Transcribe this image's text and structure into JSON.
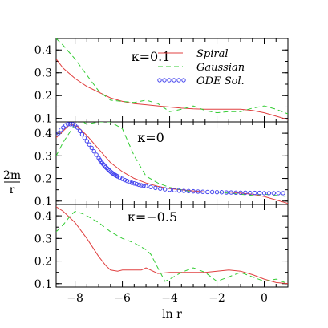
{
  "chart_data": [
    {
      "type": "line",
      "panel_label": "κ=0.1",
      "xlim": [
        -8.8,
        1.0
      ],
      "ylim": [
        0.085,
        0.45
      ],
      "yticks": [
        0.1,
        0.2,
        0.3,
        0.4
      ],
      "series": [
        {
          "name": "Spiral",
          "style": "solid",
          "color": "#e04040",
          "x": [
            -8.8,
            -8.5,
            -8.0,
            -7.5,
            -7.0,
            -6.5,
            -6.0,
            -5.5,
            -5.0,
            -4.5,
            -4.0,
            -3.5,
            -3.0,
            -2.5,
            -2.0,
            -1.5,
            -1.0,
            -0.5,
            0.0,
            0.5,
            1.0
          ],
          "y": [
            0.36,
            0.32,
            0.275,
            0.24,
            0.215,
            0.19,
            0.175,
            0.165,
            0.16,
            0.155,
            0.15,
            0.145,
            0.142,
            0.14,
            0.14,
            0.14,
            0.14,
            0.135,
            0.125,
            0.11,
            0.095
          ]
        },
        {
          "name": "Gaussian",
          "style": "dashed",
          "color": "#33cc33",
          "x": [
            -8.8,
            -8.5,
            -8.0,
            -7.5,
            -7.0,
            -6.5,
            -6.0,
            -5.5,
            -5.0,
            -4.5,
            -4.0,
            -3.5,
            -3.0,
            -2.5,
            -2.0,
            -1.5,
            -1.0,
            -0.5,
            0.0,
            0.5,
            1.0
          ],
          "y": [
            0.45,
            0.42,
            0.36,
            0.29,
            0.22,
            0.18,
            0.175,
            0.17,
            0.18,
            0.165,
            0.13,
            0.14,
            0.155,
            0.135,
            0.125,
            0.13,
            0.13,
            0.145,
            0.155,
            0.14,
            0.12
          ]
        }
      ]
    },
    {
      "type": "line",
      "panel_label": "κ=0",
      "xlim": [
        -8.8,
        1.0
      ],
      "ylim": [
        0.085,
        0.45
      ],
      "yticks": [
        0.1,
        0.2,
        0.3,
        0.4
      ],
      "series": [
        {
          "name": "Spiral",
          "style": "solid",
          "color": "#e04040",
          "x": [
            -8.8,
            -8.5,
            -8.2,
            -7.9,
            -7.5,
            -7.0,
            -6.5,
            -6.0,
            -5.5,
            -5.0,
            -4.5,
            -4.0,
            -3.5,
            -3.0,
            -2.5,
            -2.0,
            -1.5,
            -1.0,
            -0.5,
            0.0,
            0.5,
            1.0
          ],
          "y": [
            0.38,
            0.41,
            0.44,
            0.43,
            0.39,
            0.33,
            0.27,
            0.23,
            0.2,
            0.18,
            0.165,
            0.155,
            0.15,
            0.145,
            0.14,
            0.14,
            0.14,
            0.135,
            0.13,
            0.12,
            0.105,
            0.09
          ]
        },
        {
          "name": "Gaussian",
          "style": "dashed",
          "color": "#33cc33",
          "x": [
            -8.8,
            -8.5,
            -8.0,
            -7.8,
            -7.5,
            -7.0,
            -6.5,
            -6.0,
            -5.5,
            -5.0,
            -4.5,
            -4.0,
            -3.5,
            -3.0,
            -2.5,
            -2.0,
            -1.5,
            -1.0,
            -0.5,
            0.0,
            0.5,
            1.0
          ],
          "y": [
            0.3,
            0.36,
            0.44,
            0.46,
            0.44,
            0.45,
            0.45,
            0.42,
            0.3,
            0.21,
            0.18,
            0.16,
            0.15,
            0.14,
            0.14,
            0.14,
            0.135,
            0.13,
            0.125,
            0.13,
            0.125,
            0.12
          ]
        },
        {
          "name": "ODE Sol.",
          "style": "circles",
          "color": "#4444ee",
          "x": [
            -8.7,
            -8.6,
            -8.5,
            -8.4,
            -8.3,
            -8.2,
            -8.1,
            -8.0,
            -7.9,
            -7.8,
            -7.7,
            -7.6,
            -7.5,
            -7.4,
            -7.3,
            -7.2,
            -7.1,
            -7.0,
            -6.95,
            -6.9,
            -6.85,
            -6.8,
            -6.75,
            -6.7,
            -6.65,
            -6.6,
            -6.55,
            -6.5,
            -6.45,
            -6.4,
            -6.35,
            -6.3,
            -6.25,
            -6.2,
            -6.1,
            -6.0,
            -5.9,
            -5.8,
            -5.7,
            -5.6,
            -5.5,
            -5.4,
            -5.3,
            -5.2,
            -5.1,
            -5.0,
            -4.8,
            -4.6,
            -4.4,
            -4.2,
            -4.0,
            -3.8,
            -3.6,
            -3.4,
            -3.2,
            -3.0,
            -2.8,
            -2.6,
            -2.4,
            -2.2,
            -2.0,
            -1.8,
            -1.6,
            -1.4,
            -1.2,
            -1.0,
            -0.8,
            -0.6,
            -0.4,
            -0.2,
            0.0,
            0.2,
            0.4,
            0.6,
            0.8
          ],
          "y": [
            0.4,
            0.415,
            0.425,
            0.435,
            0.44,
            0.44,
            0.44,
            0.435,
            0.425,
            0.41,
            0.395,
            0.38,
            0.365,
            0.35,
            0.335,
            0.32,
            0.305,
            0.29,
            0.282,
            0.275,
            0.268,
            0.262,
            0.256,
            0.25,
            0.245,
            0.24,
            0.235,
            0.23,
            0.226,
            0.222,
            0.218,
            0.215,
            0.212,
            0.209,
            0.203,
            0.198,
            0.193,
            0.189,
            0.185,
            0.181,
            0.178,
            0.175,
            0.172,
            0.17,
            0.168,
            0.166,
            0.162,
            0.158,
            0.155,
            0.152,
            0.15,
            0.148,
            0.146,
            0.145,
            0.144,
            0.143,
            0.142,
            0.141,
            0.14,
            0.14,
            0.139,
            0.139,
            0.138,
            0.138,
            0.137,
            0.137,
            0.137,
            0.136,
            0.136,
            0.136,
            0.135,
            0.135,
            0.135,
            0.135,
            0.135
          ]
        }
      ]
    },
    {
      "type": "line",
      "panel_label": "κ=−0.5",
      "xlim": [
        -8.8,
        1.0
      ],
      "ylim": [
        0.085,
        0.45
      ],
      "yticks": [
        0.1,
        0.2,
        0.3,
        0.4
      ],
      "xticks": [
        -8,
        -6,
        -4,
        -2,
        0
      ],
      "xlabel": "ln r",
      "series": [
        {
          "name": "Spiral",
          "style": "solid",
          "color": "#e04040",
          "x": [
            -8.8,
            -8.5,
            -8.0,
            -7.5,
            -7.0,
            -6.7,
            -6.5,
            -6.2,
            -6.0,
            -5.8,
            -5.5,
            -5.2,
            -5.0,
            -4.5,
            -4.0,
            -3.5,
            -3.0,
            -2.5,
            -2.0,
            -1.5,
            -1.0,
            -0.5,
            0.0,
            0.5,
            1.0
          ],
          "y": [
            0.44,
            0.42,
            0.37,
            0.3,
            0.22,
            0.18,
            0.16,
            0.155,
            0.16,
            0.16,
            0.16,
            0.16,
            0.17,
            0.145,
            0.15,
            0.15,
            0.15,
            0.15,
            0.155,
            0.16,
            0.155,
            0.14,
            0.12,
            0.105,
            0.1
          ]
        },
        {
          "name": "Gaussian",
          "style": "dashed",
          "color": "#33cc33",
          "x": [
            -8.8,
            -8.5,
            -8.2,
            -8.0,
            -7.7,
            -7.5,
            -7.0,
            -6.5,
            -6.0,
            -5.5,
            -5.0,
            -4.8,
            -4.5,
            -4.2,
            -4.0,
            -3.5,
            -3.0,
            -2.5,
            -2.0,
            -1.5,
            -1.0,
            -0.5,
            0.0,
            0.5,
            1.0
          ],
          "y": [
            0.33,
            0.36,
            0.4,
            0.42,
            0.41,
            0.4,
            0.37,
            0.33,
            0.3,
            0.28,
            0.25,
            0.23,
            0.17,
            0.11,
            0.12,
            0.15,
            0.17,
            0.15,
            0.11,
            0.13,
            0.15,
            0.13,
            0.11,
            0.12,
            0.1
          ]
        }
      ]
    }
  ],
  "legend": [
    {
      "label": "Spiral",
      "style": "solid",
      "color": "#e04040"
    },
    {
      "label": "Gaussian",
      "style": "dashed",
      "color": "#33cc33"
    },
    {
      "label": "ODE Sol.",
      "style": "circles",
      "color": "#4444ee"
    }
  ],
  "ylabel_numerator": "2m",
  "ylabel_denominator": "r"
}
